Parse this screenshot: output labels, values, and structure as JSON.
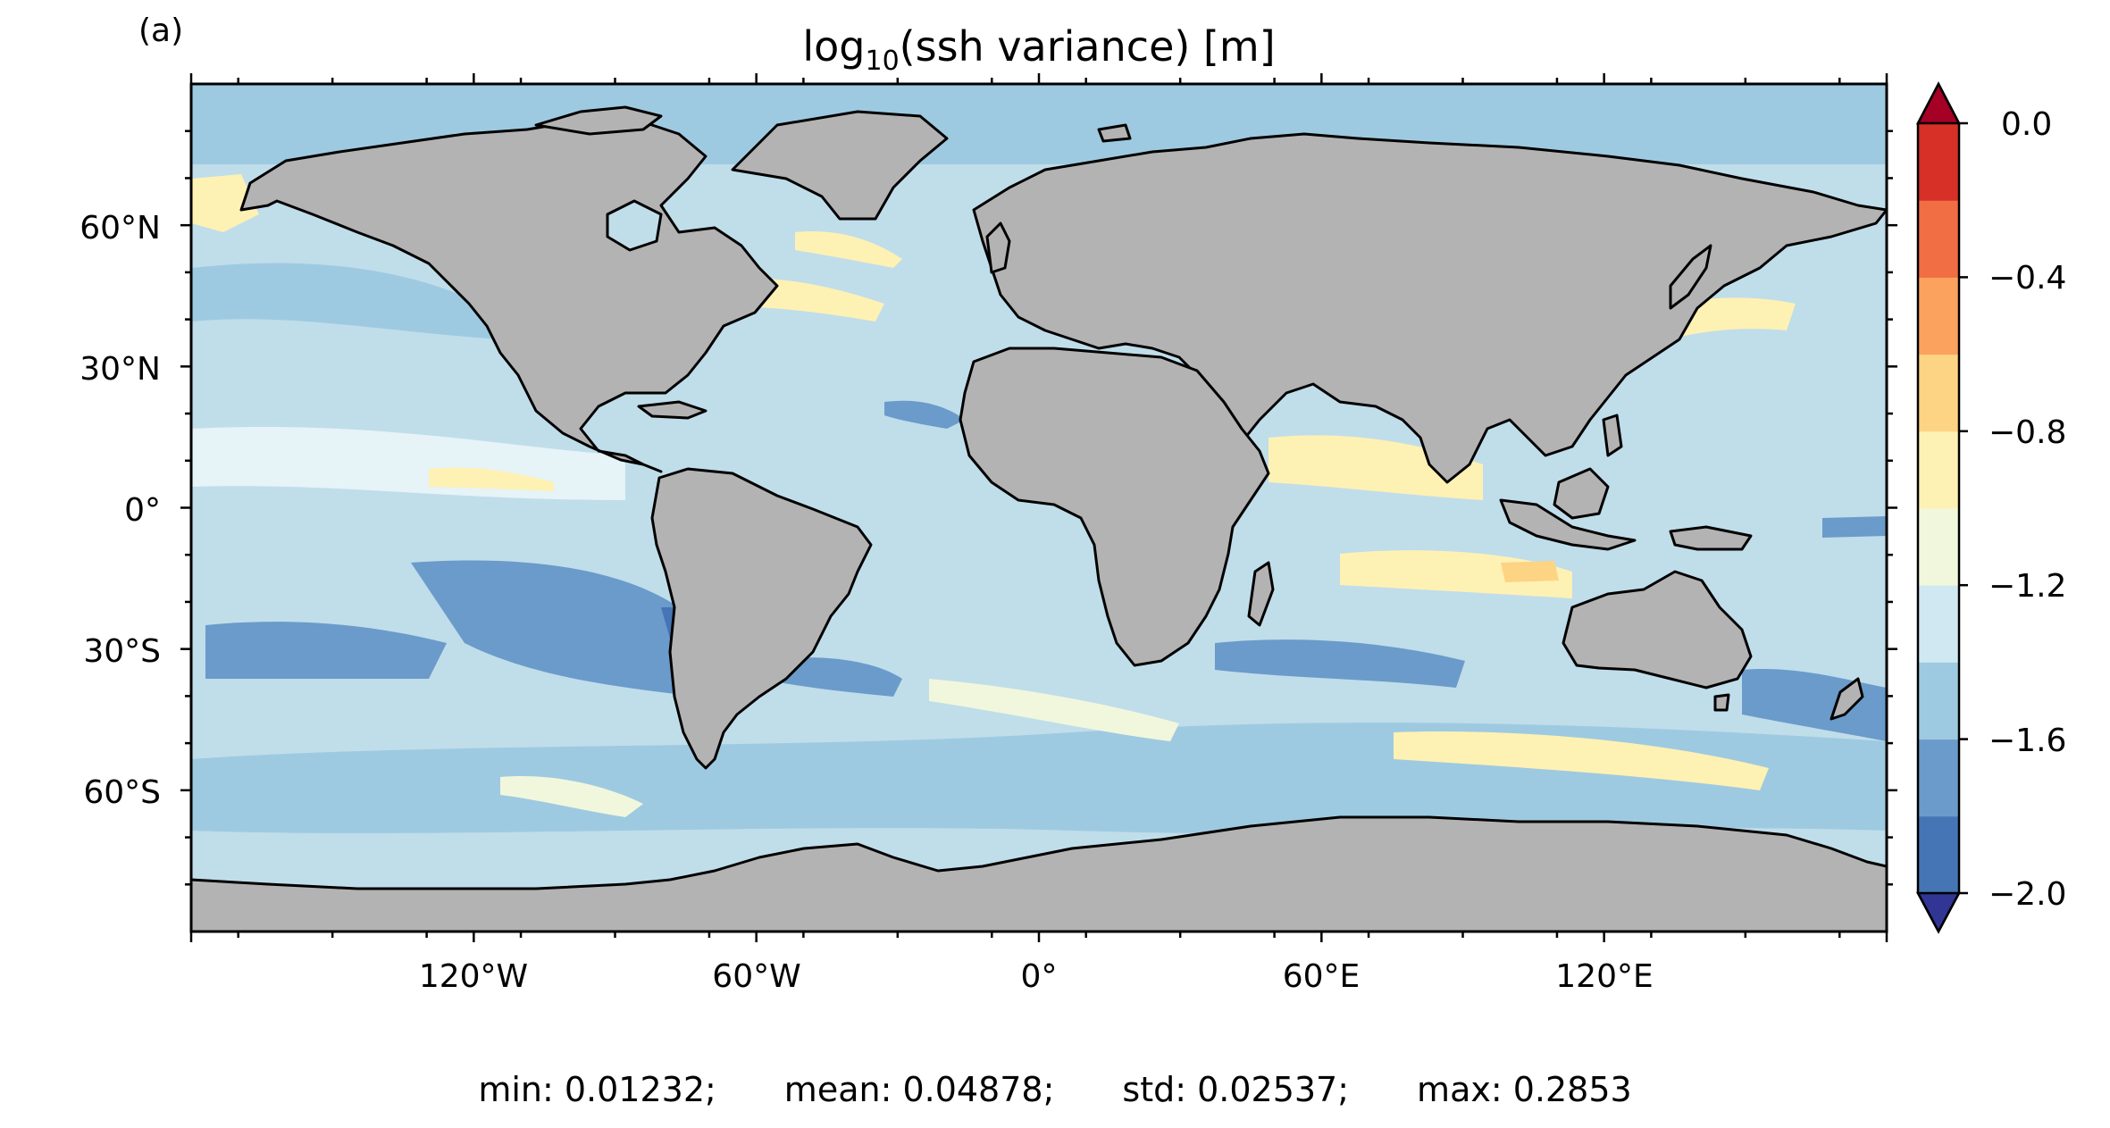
{
  "panel_label": "(a)",
  "title_parts": {
    "pre": "log",
    "sub": "10",
    "post": "(ssh variance) [m]"
  },
  "lat_labels": [
    "60°N",
    "30°N",
    "0°",
    "30°S",
    "60°S"
  ],
  "lon_labels": [
    "120°W",
    "60°W",
    "0°",
    "60°E",
    "120°E"
  ],
  "colorbar": {
    "tick_labels": [
      "0.0",
      "−0.4",
      "−0.8",
      "−1.2",
      "−1.6",
      "−2.0"
    ],
    "levels": [
      -2.0,
      -1.8,
      -1.6,
      -1.4,
      -1.2,
      -1.0,
      -0.8,
      -0.6,
      -0.4,
      -0.2,
      0.0
    ],
    "colors": [
      "#4575b4",
      "#6a9bca",
      "#9ecae1",
      "#cfe8f1",
      "#f1f7dd",
      "#fef1b4",
      "#fdd384",
      "#fba25e",
      "#f16d43",
      "#d63027"
    ],
    "under_color": "#313695",
    "over_color": "#a50026",
    "extend": "both"
  },
  "stats": {
    "min": "min: 0.01232;",
    "mean": "mean: 0.04878;",
    "std": "std: 0.02537;",
    "max": "max: 0.2853"
  },
  "map": {
    "projection": "PlateCarree",
    "lon_range": [
      -180,
      180
    ],
    "lat_range": [
      -90,
      90
    ],
    "land_color": "#b3b3b3",
    "coastline_color": "#000000"
  }
}
